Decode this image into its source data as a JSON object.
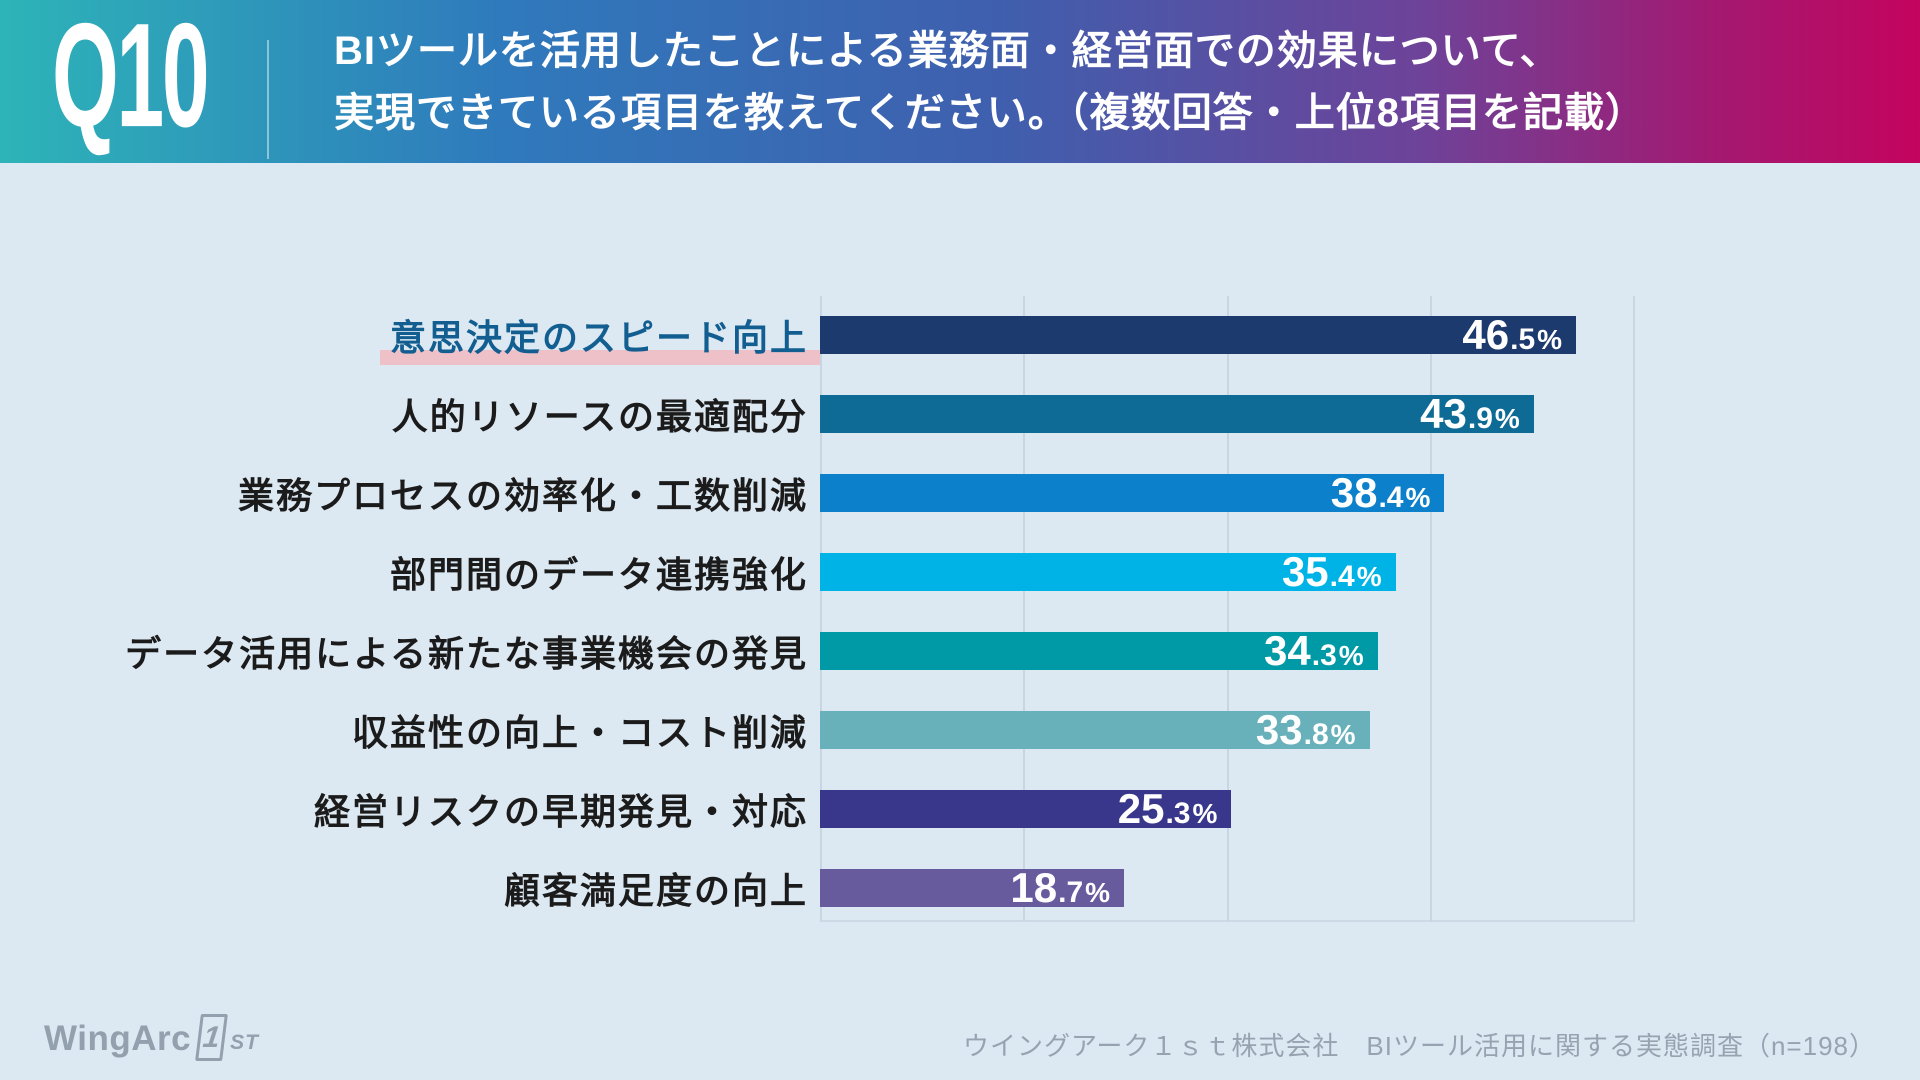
{
  "header": {
    "question_number": "Q10",
    "title_line1": "BIツールを活用したことによる業務面・経営面での効果について、",
    "title_line2": "実現できている項目を教えてください。（複数回答・上位8項目を記載）"
  },
  "chart_data": {
    "type": "bar",
    "orientation": "horizontal",
    "title": "",
    "xlabel": "",
    "ylabel": "",
    "xlim": [
      0,
      50
    ],
    "gridline_interval": 12.5,
    "grid": true,
    "unit": "%",
    "categories": [
      "意思決定のスピード向上",
      "人的リソースの最適配分",
      "業務プロセスの効率化・工数削減",
      "部門間のデータ連携強化",
      "データ活用による新たな事業機会の発見",
      "収益性の向上・コスト削減",
      "経営リスクの早期発見・対応",
      "顧客満足度の向上"
    ],
    "values": [
      46.5,
      43.9,
      38.4,
      35.4,
      34.3,
      33.8,
      25.3,
      18.7
    ],
    "bar_colors": [
      "#1c3a6e",
      "#0e6b96",
      "#0c80cb",
      "#00b3e6",
      "#009aa6",
      "#68b0ba",
      "#39378b",
      "#675b9e"
    ],
    "highlighted_index": 0,
    "highlight_text_color": "#135e90",
    "highlight_underline_color": "#eec1c9"
  },
  "footer": {
    "logo_word": "WingArc",
    "logo_one": "1",
    "logo_st": "ST",
    "source": "ウイングアーク１ｓｔ株式会社　BIツール活用に関する実態調査（n=198）"
  },
  "colors": {
    "background": "#dce8f2",
    "header_gradient_start": "#2db4b8",
    "header_gradient_mid": "#3f5fae",
    "header_gradient_end": "#c4045e",
    "gridline": "#c8d6e2",
    "label_text": "#1b1b1b",
    "value_text": "#ffffff",
    "footer_text": "#97a3b1"
  }
}
